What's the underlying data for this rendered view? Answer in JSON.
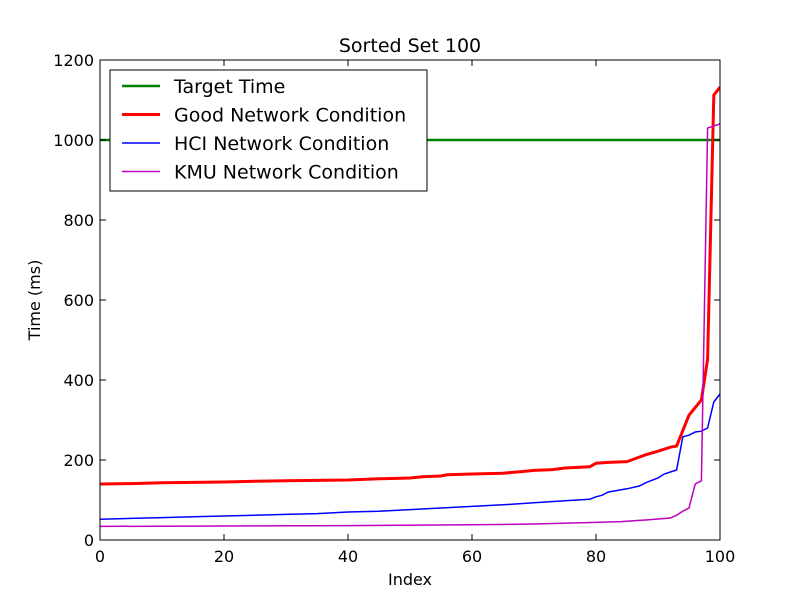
{
  "chart_data": {
    "type": "line",
    "title": "Sorted Set 100",
    "xlabel": "Index",
    "ylabel": "Time (ms)",
    "xlim": [
      0,
      100
    ],
    "ylim": [
      0,
      1200
    ],
    "xticks": [
      0,
      20,
      40,
      60,
      80,
      100
    ],
    "yticks": [
      0,
      200,
      400,
      600,
      800,
      1000,
      1200
    ],
    "xtick_labels": [
      "0",
      "20",
      "40",
      "60",
      "80",
      "100"
    ],
    "ytick_labels": [
      "0",
      "200",
      "400",
      "600",
      "800",
      "1000",
      "1200"
    ],
    "grid": false,
    "legend_position": "upper-left",
    "series": [
      {
        "name": "Target Time",
        "color": "#008000",
        "width": 2.5,
        "x": [
          0,
          100
        ],
        "y": [
          1000,
          1000
        ]
      },
      {
        "name": "Good Network Condition",
        "color": "#ff0000",
        "width": 3,
        "x": [
          0,
          5,
          10,
          15,
          20,
          25,
          30,
          35,
          40,
          45,
          50,
          52,
          55,
          56,
          60,
          65,
          68,
          70,
          73,
          75,
          79,
          80,
          82,
          85,
          88,
          90,
          92,
          93,
          95,
          97,
          98,
          99,
          100
        ],
        "y": [
          140,
          141,
          143,
          144,
          145,
          147,
          148,
          149,
          150,
          153,
          155,
          158,
          160,
          163,
          165,
          167,
          171,
          174,
          176,
          180,
          183,
          192,
          194,
          196,
          213,
          222,
          232,
          235,
          312,
          350,
          452,
          1112,
          1132
        ]
      },
      {
        "name": "HCI Network Condition",
        "color": "#0000ff",
        "width": 1.5,
        "x": [
          0,
          5,
          10,
          15,
          20,
          25,
          30,
          35,
          40,
          45,
          50,
          55,
          60,
          65,
          70,
          75,
          79,
          80,
          81,
          82,
          85,
          87,
          88,
          90,
          91,
          92,
          93,
          94,
          95,
          96,
          97,
          98,
          99,
          100
        ],
        "y": [
          52,
          54,
          56,
          58,
          60,
          62,
          64,
          66,
          70,
          72,
          76,
          80,
          84,
          88,
          93,
          98,
          102,
          108,
          112,
          120,
          128,
          135,
          143,
          155,
          165,
          170,
          175,
          258,
          262,
          270,
          272,
          280,
          345,
          365
        ]
      },
      {
        "name": "KMU Network Condition",
        "color": "#bf00bf",
        "width": 1.5,
        "x": [
          0,
          20,
          40,
          60,
          70,
          80,
          84,
          88,
          92,
          93,
          94,
          95,
          96,
          97,
          98,
          99,
          100
        ],
        "y": [
          34,
          35,
          36,
          38,
          40,
          44,
          46,
          50,
          55,
          62,
          72,
          80,
          140,
          148,
          1030,
          1035,
          1040
        ]
      }
    ]
  }
}
